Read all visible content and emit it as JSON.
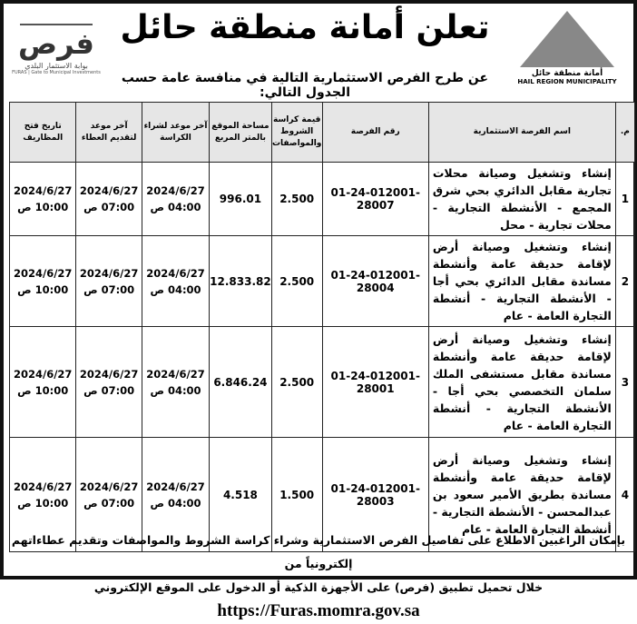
{
  "header": {
    "title": "تعلن أمانة منطقة حائل",
    "subtitle": "عن طرح الفرص الاستثمارية التالية في منافسة عامة حسب الجدول التالي:",
    "logo_right": {
      "ar": "أمانة منطقة حائل",
      "en": "HAIL REGION MUNICIPALITY"
    },
    "logo_left": {
      "word": "فرص",
      "ar": "بوابة الاستثمار البلدي",
      "en": "FURAS | Gate to Municipal Investments"
    }
  },
  "table": {
    "columns": [
      "م.",
      "اسم الفرصة الاستثمارية",
      "رقم الفرصة",
      "قيمة كراسة الشروط والمواصفات",
      "مساحة الموقع بالمتر المربع",
      "آخر موعد لشراء الكراسة",
      "آخر موعد لتقديم العطاء",
      "تاريخ فتح المظاريف"
    ],
    "rows": [
      {
        "n": "1",
        "name": "إنشاء وتشغيل وصيانة محلات تجارية مقابل الدائري بحي شرق المجمع - الأنشطة التجارية - محلات تجارية - محل",
        "id": "01-24-012001-28007",
        "price": "2.500",
        "area": "996.01",
        "buy": "2024/6/27",
        "buy_t": "04:00 ص",
        "bid": "2024/6/27",
        "bid_t": "07:00 ص",
        "open": "2024/6/27",
        "open_t": "10:00 ص"
      },
      {
        "n": "2",
        "name": "إنشاء وتشغيل وصيانة أرض لإقامة حديقة عامة وأنشطة مساندة مقابل الدائري بحي أجا - الأنشطة التجارية - أنشطة التجارة العامة - عام",
        "id": "01-24-012001-28004",
        "price": "2.500",
        "area": "12.833.82",
        "buy": "2024/6/27",
        "buy_t": "04:00 ص",
        "bid": "2024/6/27",
        "bid_t": "07:00 ص",
        "open": "2024/6/27",
        "open_t": "10:00 ص"
      },
      {
        "n": "3",
        "name": "إنشاء وتشغيل وصيانة أرض لإقامة حديقة عامة وأنشطة مساندة مقابل مستشفى الملك سلمان التخصصي بحي أجا - الأنشطة التجارية - أنشطة التجارة العامة - عام",
        "id": "01-24-012001-28001",
        "price": "2.500",
        "area": "6.846.24",
        "buy": "2024/6/27",
        "buy_t": "04:00 ص",
        "bid": "2024/6/27",
        "bid_t": "07:00 ص",
        "open": "2024/6/27",
        "open_t": "10:00 ص"
      },
      {
        "n": "4",
        "name": "إنشاء وتشغيل وصيانة أرض لإقامة حديقة عامة وأنشطة مساندة بطريق الأمير سعود بن عبدالمحسن - الأنشطة التجارية - أنشطة التجارة العامة - عام",
        "id": "01-24-012001-28003",
        "price": "1.500",
        "area": "4.518",
        "buy": "2024/6/27",
        "buy_t": "04:00 ص",
        "bid": "2024/6/27",
        "bid_t": "07:00 ص",
        "open": "2024/6/27",
        "open_t": "10:00 ص"
      }
    ]
  },
  "footer": {
    "line1": "بإمكان الراغبين الاطلاع على تفاصيل الفرص الاستثمارية وشراء كراسة الشروط والمواصفات وتقديم عطاءاتهم إلكترونياً من",
    "line2": "خلال تحميل تطبيق (فرص) على الأجهزة الذكية أو الدخول على الموقع الإلكتروني",
    "url": "https://Furas.momra.gov.sa"
  }
}
